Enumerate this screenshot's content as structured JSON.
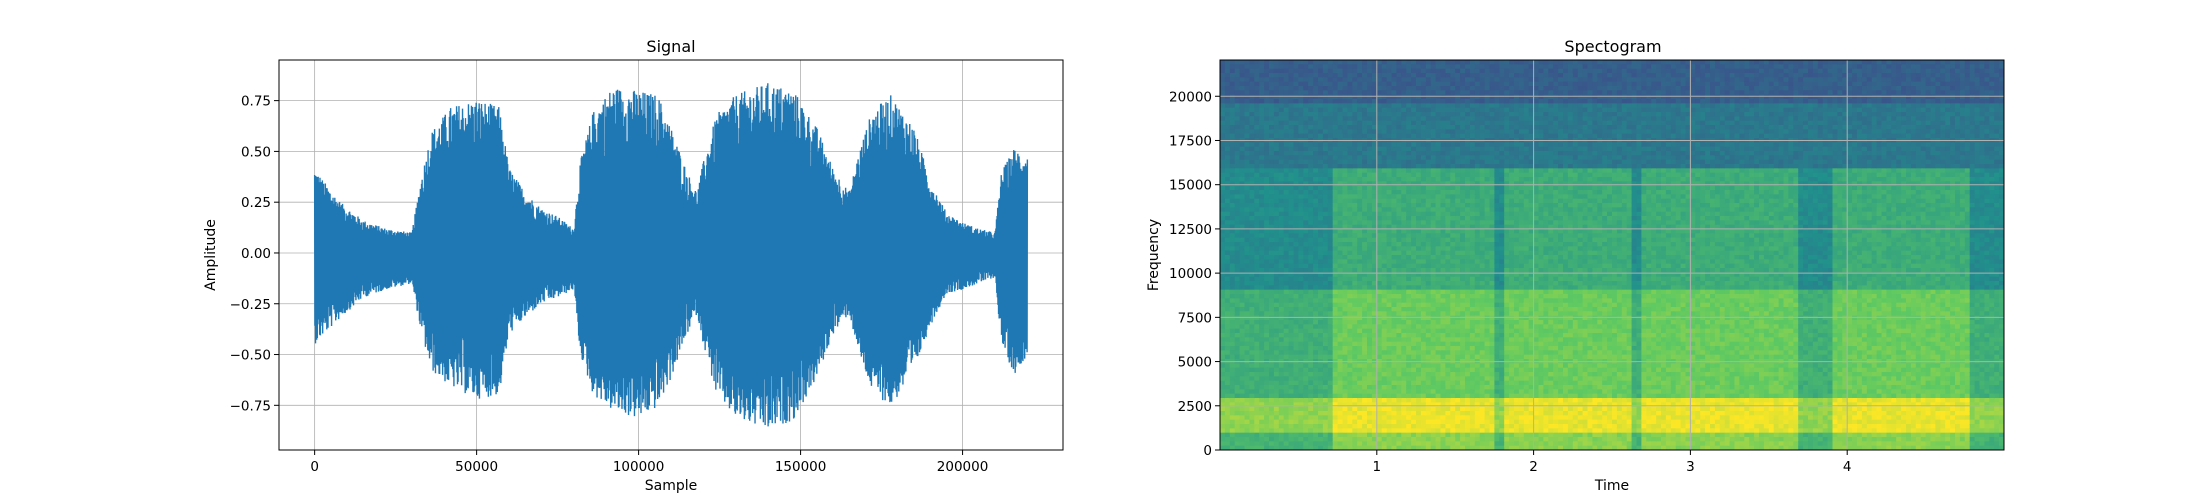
{
  "chart_data": [
    {
      "type": "line",
      "title": "Signal",
      "xlabel": "Sample",
      "ylabel": "Amplitude",
      "xlim": [
        -11000,
        231000
      ],
      "ylim": [
        -0.97,
        0.95
      ],
      "grid": true,
      "color": "#1f77b4",
      "xticks": [
        0,
        50000,
        100000,
        150000,
        200000
      ],
      "xtick_labels": [
        "0",
        "50000",
        "100000",
        "150000",
        "200000"
      ],
      "yticks": [
        0.75,
        0.5,
        0.25,
        0.0,
        -0.25,
        -0.5,
        -0.75
      ],
      "ytick_labels": [
        "0.75",
        "0.50",
        "0.25",
        "0.00",
        "−0.25",
        "−0.50",
        "−0.75"
      ],
      "envelope": {
        "x": [
          0,
          3000,
          8000,
          15000,
          22000,
          30000,
          33000,
          36000,
          42000,
          50000,
          57000,
          60000,
          65000,
          70000,
          75000,
          80000,
          82000,
          86000,
          92000,
          100000,
          106000,
          110000,
          115000,
          118000,
          120000,
          124000,
          130000,
          140000,
          148000,
          155000,
          160000,
          165000,
          168000,
          172000,
          178000,
          185000,
          190000,
          195000,
          200000,
          205000,
          210000,
          212000,
          216000,
          220000
        ],
        "upper": [
          0.42,
          0.35,
          0.25,
          0.16,
          0.12,
          0.1,
          0.38,
          0.6,
          0.72,
          0.76,
          0.72,
          0.42,
          0.3,
          0.22,
          0.18,
          0.12,
          0.45,
          0.7,
          0.82,
          0.8,
          0.78,
          0.62,
          0.4,
          0.3,
          0.45,
          0.68,
          0.78,
          0.84,
          0.8,
          0.62,
          0.42,
          0.3,
          0.5,
          0.7,
          0.78,
          0.62,
          0.36,
          0.2,
          0.15,
          0.12,
          0.1,
          0.4,
          0.52,
          0.48
        ],
        "lower": [
          -0.45,
          -0.4,
          -0.32,
          -0.22,
          -0.18,
          -0.15,
          -0.4,
          -0.58,
          -0.66,
          -0.72,
          -0.7,
          -0.4,
          -0.32,
          -0.25,
          -0.22,
          -0.18,
          -0.5,
          -0.7,
          -0.78,
          -0.82,
          -0.76,
          -0.62,
          -0.4,
          -0.3,
          -0.45,
          -0.7,
          -0.82,
          -0.88,
          -0.82,
          -0.62,
          -0.4,
          -0.3,
          -0.5,
          -0.68,
          -0.76,
          -0.58,
          -0.36,
          -0.2,
          -0.18,
          -0.15,
          -0.12,
          -0.45,
          -0.6,
          -0.5
        ]
      }
    },
    {
      "type": "heatmap",
      "title": "Spectogram",
      "xlabel": "Time",
      "ylabel": "Frequency",
      "xlim": [
        0,
        5
      ],
      "ylim": [
        0,
        22050
      ],
      "grid": true,
      "xticks": [
        1,
        2,
        3,
        4
      ],
      "xtick_labels": [
        "1",
        "2",
        "3",
        "4"
      ],
      "yticks": [
        0,
        2500,
        5000,
        7500,
        10000,
        12500,
        15000,
        17500,
        20000
      ],
      "ytick_labels": [
        "0",
        "2500",
        "5000",
        "7500",
        "10000",
        "12500",
        "15000",
        "17500",
        "20000"
      ],
      "colormap": "viridis",
      "voiced_segments": [
        [
          0.75,
          1.78
        ],
        [
          1.78,
          1.85
        ],
        [
          2.6,
          2.73
        ],
        [
          3.7,
          3.9
        ],
        [
          4.8,
          5.0
        ]
      ],
      "active_segments": [
        [
          0.72,
          1.75
        ],
        [
          1.82,
          2.62
        ],
        [
          2.7,
          3.68
        ],
        [
          3.92,
          4.78
        ]
      ],
      "bands": [
        {
          "freq": [
            1000,
            3000
          ],
          "level": 0.95
        },
        {
          "freq": [
            3000,
            9000
          ],
          "level": 0.75
        },
        {
          "freq": [
            9000,
            16000
          ],
          "level": 0.6
        },
        {
          "freq": [
            16000,
            19500
          ],
          "level": 0.4
        },
        {
          "freq": [
            19500,
            22050
          ],
          "level": 0.3
        }
      ]
    }
  ]
}
